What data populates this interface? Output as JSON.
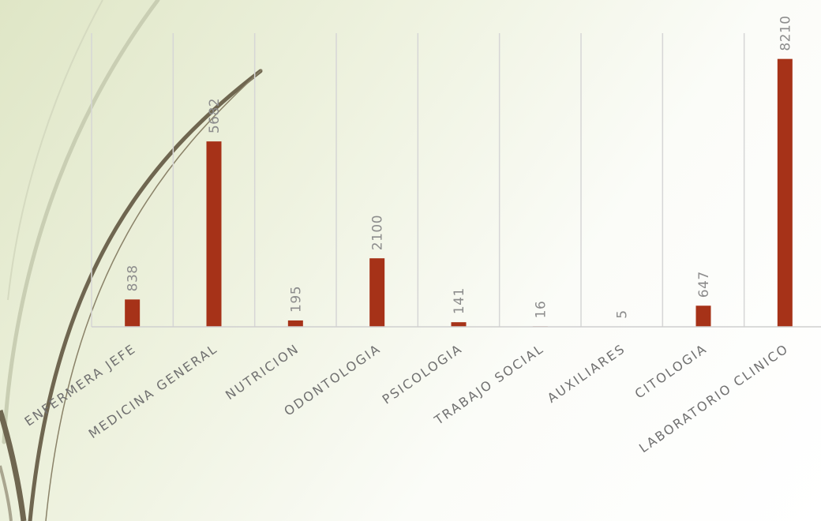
{
  "chart_data": {
    "type": "bar",
    "categories": [
      "ENFERMERA JEFE",
      "MEDICINA GENERAL",
      "NUTRICION",
      "ODONTOLOGIA",
      "PSICOLOGIA",
      "TRABAJO SOCIAL",
      "AUXILIARES",
      "CITOLOGIA",
      "LABORATORIO CLINICO"
    ],
    "values": [
      838,
      5682,
      195,
      2100,
      141,
      16,
      5,
      647,
      8210
    ],
    "data_labels": [
      "838",
      "5682",
      "195",
      "2100",
      "141",
      "16",
      "5",
      "647",
      "8210"
    ],
    "title": "",
    "xlabel": "",
    "ylabel": "",
    "ylim": [
      0,
      9000
    ],
    "grid": "vertical-category-lines",
    "legend": "none"
  },
  "colors": {
    "bar": "#a63218",
    "gridline": "#d6d6d6",
    "axis": "#cfcfcf",
    "value_label": "#8c8c8c",
    "category_label": "#707070",
    "swoosh_dark": "#6f6650",
    "swoosh_light": "#c9ceb3"
  }
}
